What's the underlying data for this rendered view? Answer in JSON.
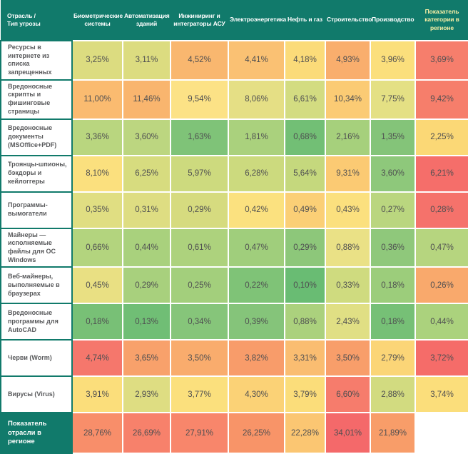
{
  "colors": {
    "header_bg": "#117a6b",
    "header_text": "#ffffff",
    "summary_header_text": "#f8efa5",
    "label_text": "#58595b",
    "value_text": "#4f4f51",
    "label_border": "#117a6b",
    "grid_line": "#ffffff"
  },
  "chart_data": {
    "type": "heatmap",
    "corner_label": "Отрасль /\nТип угрозы",
    "columns": [
      "Биометрические системы",
      "Автоматизация зданий",
      "Инжиниринг и интеграторы АСУ",
      "Электроэнергетика",
      "Нефть и газ",
      "Строительство",
      "Производство",
      "Показатель категории в регионе"
    ],
    "rows": [
      {
        "name": "Ресурсы в интернете из списка запрещенных",
        "values": [
          3.25,
          3.11,
          4.52,
          4.41,
          4.18,
          4.93,
          3.96,
          3.69
        ],
        "display": [
          "3,25%",
          "3,11%",
          "4,52%",
          "4,41%",
          "4,18%",
          "4,93%",
          "3,96%",
          "3,69%"
        ],
        "cell_colors": [
          "#dcdc80",
          "#dcdc80",
          "#f9b76f",
          "#fac173",
          "#fbdb79",
          "#f9ae6d",
          "#fbdf7c",
          "#f67e6c"
        ]
      },
      {
        "name": "Вредоносные скрипты и фишинговые страницы",
        "values": [
          11.0,
          11.46,
          9.54,
          8.06,
          6.61,
          10.34,
          7.75,
          9.42
        ],
        "display": [
          "11,00%",
          "11,46%",
          "9,54%",
          "8,06%",
          "6,61%",
          "10,34%",
          "7,75%",
          "9,42%"
        ],
        "cell_colors": [
          "#fabb70",
          "#f9b56e",
          "#fce286",
          "#e5df85",
          "#d3dc81",
          "#fbcb74",
          "#e4e084",
          "#f67e6b"
        ]
      },
      {
        "name": "Вредоносные документы (MSOffice+PDF)",
        "values": [
          3.36,
          3.6,
          1.63,
          1.81,
          0.68,
          2.16,
          1.35,
          2.25
        ],
        "display": [
          "3,36%",
          "3,60%",
          "1,63%",
          "1,81%",
          "0,68%",
          "2,16%",
          "1,35%",
          "2,25%"
        ],
        "cell_colors": [
          "#b9d67f",
          "#bcd680",
          "#7fc378",
          "#aad17d",
          "#72bf75",
          "#a6d07c",
          "#84c479",
          "#fbd876"
        ]
      },
      {
        "name": "Троянцы-шпионы, бэкдоры и кейлоггеры",
        "values": [
          8.1,
          6.25,
          5.97,
          6.28,
          5.64,
          9.31,
          3.6,
          6.21
        ],
        "display": [
          "8,10%",
          "6,25%",
          "5,97%",
          "6,28%",
          "5,64%",
          "9,31%",
          "3,60%",
          "6,21%"
        ],
        "cell_colors": [
          "#fbe07e",
          "#d7dc7f",
          "#cdda7e",
          "#ccda7e",
          "#c5d87d",
          "#fbca73",
          "#8ec87b",
          "#f56e6a"
        ]
      },
      {
        "name": "Программы-вымогатели",
        "values": [
          0.35,
          0.31,
          0.29,
          0.42,
          0.49,
          0.43,
          0.27,
          0.28
        ],
        "display": [
          "0,35%",
          "0,31%",
          "0,29%",
          "0,42%",
          "0,49%",
          "0,43%",
          "0,27%",
          "0,28%"
        ],
        "cell_colors": [
          "#e0de82",
          "#dedd82",
          "#d6db7f",
          "#fbe17f",
          "#fbcf76",
          "#fbe07e",
          "#bad67f",
          "#f5726b"
        ]
      },
      {
        "name": "Майнеры — исполняемые файлы для ОС Windows",
        "values": [
          0.66,
          0.44,
          0.61,
          0.47,
          0.29,
          0.88,
          0.36,
          0.47
        ],
        "display": [
          "0,66%",
          "0,44%",
          "0,61%",
          "0,47%",
          "0,29%",
          "0,88%",
          "0,36%",
          "0,47%"
        ],
        "cell_colors": [
          "#b3d47e",
          "#a9d17d",
          "#add27d",
          "#a0ce7c",
          "#8dc77a",
          "#eae186",
          "#8fc87b",
          "#b6d57f"
        ]
      },
      {
        "name": "Веб-майнеры, выполняемые в браузерах",
        "values": [
          0.45,
          0.29,
          0.25,
          0.22,
          0.1,
          0.33,
          0.18,
          0.26
        ],
        "display": [
          "0,45%",
          "0,29%",
          "0,25%",
          "0,22%",
          "0,10%",
          "0,33%",
          "0,18%",
          "0,26%"
        ],
        "cell_colors": [
          "#e9e083",
          "#a8d07d",
          "#a3cf7c",
          "#7fc377",
          "#69bc73",
          "#cfdb7f",
          "#9ccd7b",
          "#f9a96c"
        ]
      },
      {
        "name": "Вредоносные программы для AutoCAD",
        "values": [
          0.18,
          0.13,
          0.34,
          0.39,
          0.88,
          2.43,
          0.18,
          0.44
        ],
        "display": [
          "0,18%",
          "0,13%",
          "0,34%",
          "0,39%",
          "0,88%",
          "2,43%",
          "0,18%",
          "0,44%"
        ],
        "cell_colors": [
          "#78c076",
          "#70be75",
          "#86c57a",
          "#85c47a",
          "#abd17d",
          "#e0df84",
          "#76c076",
          "#abd27d"
        ]
      },
      {
        "name": "Черви (Worm)",
        "values": [
          4.74,
          3.65,
          3.5,
          3.82,
          3.31,
          3.5,
          2.79,
          3.72
        ],
        "display": [
          "4,74%",
          "3,65%",
          "3,50%",
          "3,82%",
          "3,31%",
          "3,50%",
          "2,79%",
          "3,72%"
        ],
        "cell_colors": [
          "#f5776c",
          "#f8a16b",
          "#f9ac6d",
          "#f89c6a",
          "#fabd71",
          "#f89e6a",
          "#fbd577",
          "#f56c69"
        ]
      },
      {
        "name": "Вирусы (Virus)",
        "values": [
          3.91,
          2.93,
          3.77,
          4.3,
          3.79,
          6.6,
          2.88,
          3.74
        ],
        "display": [
          "3,91%",
          "2,93%",
          "3,77%",
          "4,30%",
          "3,79%",
          "6,60%",
          "2,88%",
          "3,74%"
        ],
        "cell_colors": [
          "#fbde7b",
          "#dedd82",
          "#fbe07d",
          "#fbd276",
          "#fbdd7a",
          "#f67c6c",
          "#d2db80",
          "#fbde7b"
        ]
      },
      {
        "name": "Показатель отрасли в регионе",
        "is_summary": true,
        "values": [
          28.76,
          26.69,
          27.91,
          26.25,
          22.28,
          34.01,
          21.89,
          null
        ],
        "display": [
          "28,76%",
          "26,69%",
          "27,91%",
          "26,25%",
          "22,28%",
          "34,01%",
          "21,89%",
          ""
        ],
        "cell_colors": [
          "#f88e6a",
          "#f7816b",
          "#f8866b",
          "#f89468",
          "#fbc672",
          "#f4696a",
          "#f89d69",
          ""
        ]
      }
    ]
  }
}
